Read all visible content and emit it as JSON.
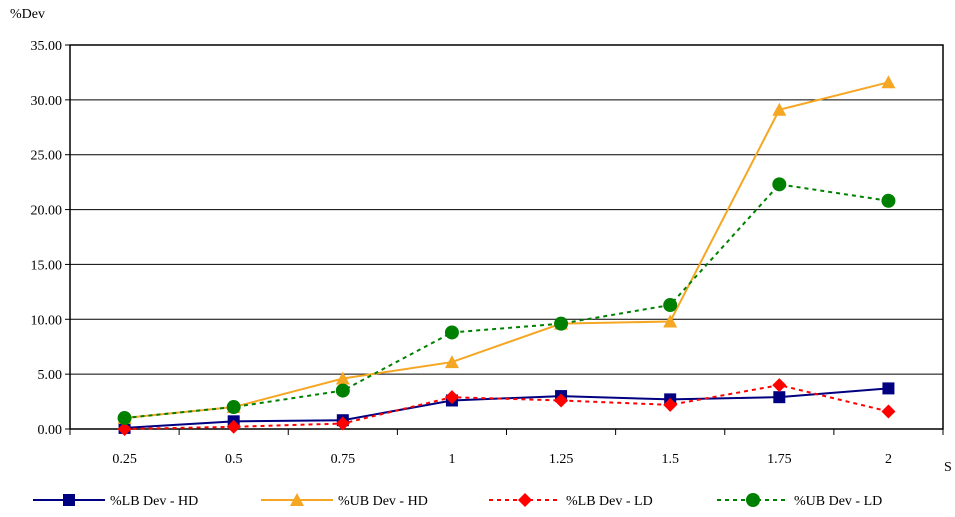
{
  "chart_data": {
    "type": "line",
    "title": "",
    "xlabel": "S",
    "ylabel": "%Dev",
    "categories": [
      "0.25",
      "0.5",
      "0.75",
      "1",
      "1.25",
      "1.5",
      "1.75",
      "2"
    ],
    "y_ticks": [
      "0.00",
      "5.00",
      "10.00",
      "15.00",
      "20.00",
      "25.00",
      "30.00",
      "35.00"
    ],
    "ylim": [
      0,
      35
    ],
    "grid": "horizontal",
    "legend_position": "bottom",
    "series": [
      {
        "name": "%LB Dev - HD",
        "color": "#000080",
        "line_style": "solid",
        "marker": "square",
        "values": [
          0.1,
          0.7,
          0.8,
          2.6,
          3.0,
          2.7,
          2.9,
          3.7
        ]
      },
      {
        "name": "%UB Dev - HD",
        "color": "#F5A623",
        "line_style": "solid",
        "marker": "triangle",
        "values": [
          1.0,
          2.0,
          4.6,
          6.1,
          9.6,
          9.8,
          29.1,
          31.6
        ]
      },
      {
        "name": "%LB Dev - LD",
        "color": "#FF0000",
        "line_style": "dashed",
        "marker": "diamond",
        "values": [
          0.0,
          0.2,
          0.5,
          2.9,
          2.6,
          2.2,
          4.0,
          1.6
        ]
      },
      {
        "name": "%UB Dev - LD",
        "color": "#008000",
        "line_style": "dashed",
        "marker": "circle",
        "values": [
          1.0,
          2.0,
          3.5,
          8.8,
          9.6,
          11.3,
          22.3,
          20.8
        ]
      }
    ]
  }
}
